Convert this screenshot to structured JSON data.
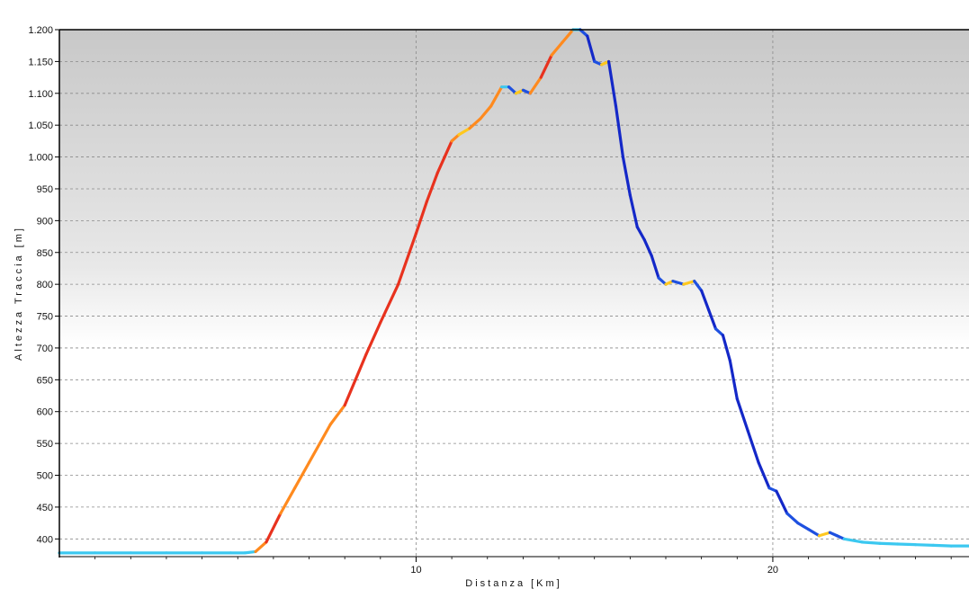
{
  "chart_data": {
    "type": "line",
    "title": "",
    "xlabel": "Distanza [Km]",
    "ylabel": "Altezza Traccia [m]",
    "xlim": [
      0,
      25.5
    ],
    "ylim": [
      375,
      1200
    ],
    "x_ticks": [
      10,
      20
    ],
    "x_tick_labels": [
      "10",
      "20"
    ],
    "y_ticks": [
      400,
      450,
      500,
      550,
      600,
      650,
      700,
      750,
      800,
      850,
      900,
      950,
      1000,
      1050,
      1100,
      1150,
      1200
    ],
    "y_tick_labels": [
      "400",
      "450",
      "500",
      "550",
      "600",
      "650",
      "700",
      "750",
      "800",
      "850",
      "900",
      "950",
      "1.000",
      "1.050",
      "1.100",
      "1.150",
      "1.200"
    ],
    "grid": true,
    "legend": "none",
    "colors": {
      "background_top": "#c8c8c8",
      "background_bottom": "#ffffff",
      "grid": "#8a8a8a",
      "steep_climb": "#e8321e",
      "climb": "#ff8a1e",
      "gentle_climb": "#ffc81e",
      "flat": "#3cc8f0",
      "descent": "#1e50e0",
      "steep_descent": "#1428c8"
    },
    "series": [
      {
        "x": [
          0,
          1,
          2,
          3,
          4,
          4.8,
          5.2,
          5.5,
          5.8,
          6.2,
          6.6,
          7,
          7.3,
          7.6,
          8,
          8.3,
          8.6,
          9,
          9.5,
          10,
          10.3,
          10.6,
          10.8,
          11,
          11.2,
          11.5,
          11.8,
          12.1,
          12.4,
          12.6,
          12.8,
          13,
          13.2,
          13.5,
          13.8,
          14.1,
          14.4,
          14.6,
          14.8,
          15,
          15.2,
          15.4,
          15.6,
          15.8,
          16,
          16.2,
          16.4,
          16.6,
          16.8,
          17,
          17.2,
          17.5,
          17.8,
          18,
          18.2,
          18.4,
          18.6,
          18.8,
          19,
          19.3,
          19.6,
          19.9,
          20.1,
          20.4,
          20.7,
          21,
          21.3,
          21.6,
          21.8,
          22,
          22.5,
          23,
          23.5,
          24,
          24.5,
          25,
          25.5
        ],
        "y": [
          378,
          378,
          378,
          378,
          378,
          378,
          378,
          380,
          395,
          440,
          480,
          520,
          550,
          580,
          610,
          650,
          690,
          740,
          800,
          880,
          930,
          975,
          1000,
          1025,
          1035,
          1045,
          1060,
          1080,
          1110,
          1110,
          1100,
          1105,
          1100,
          1125,
          1160,
          1180,
          1200,
          1200,
          1190,
          1150,
          1145,
          1150,
          1080,
          1000,
          940,
          890,
          870,
          845,
          810,
          800,
          805,
          800,
          805,
          790,
          760,
          730,
          720,
          680,
          620,
          570,
          520,
          480,
          475,
          440,
          425,
          415,
          405,
          410,
          405,
          400,
          395,
          393,
          392,
          391,
          390,
          389,
          389
        ]
      }
    ]
  }
}
